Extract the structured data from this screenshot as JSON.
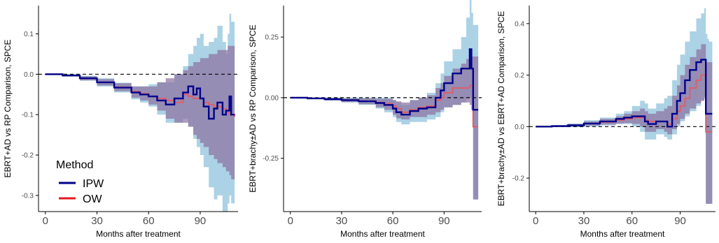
{
  "legend": {
    "title": "Method",
    "items": [
      {
        "label": "IPW",
        "color": "#00008b"
      },
      {
        "label": "OW",
        "color": "#e31a1c"
      }
    ]
  },
  "colors": {
    "ipw_band": "#9ecae1",
    "ow_band": "#8b6fa0",
    "ipw_line": "#00008b",
    "ow_line": "#d9606a",
    "reference": "#000000",
    "axis": "#000000"
  },
  "chart_data": [
    {
      "type": "line",
      "title": "",
      "xlabel": "Months after treatment",
      "ylabel": "EBRT+AD vs RP Comparison, SPCE",
      "xlim": [
        -4,
        112
      ],
      "ylim": [
        -0.34,
        0.17
      ],
      "xticks": [
        0,
        30,
        60,
        90
      ],
      "yticks": [
        -0.3,
        -0.2,
        -0.1,
        0.0,
        0.1
      ],
      "ytick_labels": [
        "-0.3",
        "-0.2",
        "-0.1",
        "0.0",
        "0.1"
      ],
      "reference_y": 0,
      "grid": false,
      "legend_position": "bottom-left",
      "x": [
        0,
        10,
        20,
        30,
        40,
        50,
        55,
        60,
        65,
        70,
        75,
        80,
        83,
        86,
        88,
        90,
        92,
        95,
        98,
        100,
        103,
        105,
        106,
        107,
        108,
        110
      ],
      "series": [
        {
          "name": "IPW",
          "values": [
            0,
            -0.003,
            -0.01,
            -0.02,
            -0.033,
            -0.045,
            -0.05,
            -0.055,
            -0.065,
            -0.075,
            -0.06,
            -0.045,
            -0.03,
            -0.05,
            -0.035,
            -0.06,
            -0.08,
            -0.11,
            -0.085,
            -0.07,
            -0.1,
            -0.09,
            -0.09,
            -0.055,
            -0.1,
            -0.1
          ]
        },
        {
          "name": "OW",
          "values": [
            0,
            -0.003,
            -0.01,
            -0.02,
            -0.032,
            -0.043,
            -0.048,
            -0.055,
            -0.06,
            -0.065,
            -0.07,
            -0.05,
            -0.055,
            -0.06,
            -0.06,
            -0.06,
            -0.07,
            -0.075,
            -0.08,
            -0.08,
            -0.085,
            -0.09,
            -0.095,
            -0.1,
            -0.1,
            -0.105
          ]
        }
      ],
      "bands": [
        {
          "name": "IPW",
          "lower": [
            0,
            -0.006,
            -0.016,
            -0.03,
            -0.045,
            -0.062,
            -0.07,
            -0.08,
            -0.1,
            -0.12,
            -0.12,
            -0.11,
            -0.13,
            -0.16,
            -0.18,
            -0.2,
            -0.23,
            -0.28,
            -0.31,
            -0.3,
            -0.34,
            -0.34,
            -0.32,
            -0.3,
            -0.32,
            -0.32
          ],
          "upper": [
            0,
            0.0,
            -0.004,
            -0.01,
            -0.021,
            -0.03,
            -0.03,
            -0.025,
            -0.02,
            -0.02,
            0.0,
            0.02,
            0.05,
            0.07,
            0.09,
            0.1,
            0.07,
            0.08,
            0.09,
            0.12,
            0.08,
            0.05,
            0.1,
            0.15,
            0.13,
            0.13
          ]
        },
        {
          "name": "OW",
          "lower": [
            0,
            -0.005,
            -0.015,
            -0.028,
            -0.042,
            -0.058,
            -0.065,
            -0.075,
            -0.09,
            -0.11,
            -0.12,
            -0.12,
            -0.13,
            -0.15,
            -0.16,
            -0.17,
            -0.18,
            -0.2,
            -0.21,
            -0.22,
            -0.23,
            -0.24,
            -0.24,
            -0.25,
            -0.26,
            -0.27
          ],
          "upper": [
            0,
            -0.001,
            -0.005,
            -0.012,
            -0.022,
            -0.03,
            -0.03,
            -0.03,
            -0.02,
            -0.01,
            0.0,
            0.01,
            0.02,
            0.03,
            0.03,
            0.04,
            0.04,
            0.05,
            0.05,
            0.06,
            0.06,
            0.06,
            0.07,
            0.07,
            0.07,
            0.07
          ]
        }
      ]
    },
    {
      "type": "line",
      "title": "",
      "xlabel": "Months after treatment",
      "ylabel": "EBRT+brachy±AD vs RP Comparison, SPCE",
      "xlim": [
        -4,
        112
      ],
      "ylim": [
        -0.47,
        0.38
      ],
      "xticks": [
        0,
        30,
        60,
        90
      ],
      "yticks": [
        -0.25,
        0.0,
        0.25
      ],
      "ytick_labels": [
        "-0.25",
        "0.00",
        "0.25"
      ],
      "reference_y": 0,
      "grid": false,
      "x": [
        0,
        10,
        20,
        30,
        40,
        50,
        55,
        60,
        62,
        65,
        70,
        75,
        80,
        85,
        88,
        90,
        95,
        100,
        103,
        105,
        106,
        107,
        108,
        110
      ],
      "series": [
        {
          "name": "IPW",
          "values": [
            0,
            -0.003,
            -0.006,
            -0.01,
            -0.015,
            -0.022,
            -0.03,
            -0.045,
            -0.06,
            -0.07,
            -0.055,
            -0.045,
            -0.04,
            0.0,
            0.03,
            0.06,
            0.1,
            0.12,
            0.12,
            0.2,
            0.12,
            -0.05,
            -0.05,
            -0.05
          ]
        },
        {
          "name": "OW",
          "values": [
            0,
            -0.003,
            -0.006,
            -0.01,
            -0.014,
            -0.02,
            -0.025,
            -0.035,
            -0.045,
            -0.06,
            -0.05,
            -0.04,
            -0.035,
            -0.01,
            0.0,
            0.02,
            0.04,
            0.04,
            0.04,
            0.05,
            0.05,
            -0.12,
            -0.12,
            -0.12
          ]
        }
      ],
      "bands": [
        {
          "name": "IPW",
          "lower": [
            0,
            -0.006,
            -0.012,
            -0.02,
            -0.03,
            -0.045,
            -0.06,
            -0.08,
            -0.1,
            -0.11,
            -0.1,
            -0.1,
            -0.09,
            -0.08,
            -0.06,
            -0.04,
            -0.03,
            -0.02,
            0.0,
            0.0,
            -0.05,
            -0.42,
            -0.42,
            -0.42
          ],
          "upper": [
            0,
            0.0,
            0.0,
            0.0,
            0.0,
            0.0,
            0.0,
            -0.01,
            -0.02,
            -0.03,
            -0.01,
            0.0,
            0.02,
            0.06,
            0.1,
            0.15,
            0.2,
            0.25,
            0.33,
            0.43,
            0.35,
            0.3,
            0.3,
            0.3
          ]
        },
        {
          "name": "OW",
          "lower": [
            0,
            -0.005,
            -0.011,
            -0.018,
            -0.027,
            -0.04,
            -0.05,
            -0.07,
            -0.085,
            -0.09,
            -0.08,
            -0.08,
            -0.07,
            -0.06,
            -0.05,
            -0.04,
            -0.03,
            -0.02,
            -0.02,
            -0.03,
            -0.05,
            -0.42,
            -0.42,
            -0.42
          ],
          "upper": [
            0,
            -0.001,
            -0.002,
            -0.003,
            -0.003,
            -0.005,
            -0.005,
            -0.01,
            -0.015,
            -0.02,
            -0.01,
            0.0,
            0.01,
            0.04,
            0.06,
            0.09,
            0.12,
            0.14,
            0.16,
            0.17,
            0.17,
            0.17,
            0.17,
            0.17
          ]
        }
      ]
    },
    {
      "type": "line",
      "title": "",
      "xlabel": "Months after treatment",
      "ylabel": "EBRT+brachy±AD vs EBRT+AD Comparison, SPCE",
      "xlim": [
        -4,
        112
      ],
      "ylim": [
        -0.33,
        0.47
      ],
      "xticks": [
        0,
        30,
        60,
        90
      ],
      "yticks": [
        -0.2,
        0.0,
        0.2,
        0.4
      ],
      "ytick_labels": [
        "-0.2",
        "0.0",
        "0.2",
        "0.4"
      ],
      "reference_y": 0,
      "grid": false,
      "x": [
        0,
        10,
        20,
        30,
        40,
        50,
        55,
        60,
        65,
        68,
        70,
        75,
        80,
        82,
        85,
        88,
        90,
        93,
        96,
        100,
        103,
        105,
        106,
        107,
        108,
        110
      ],
      "series": [
        {
          "name": "IPW",
          "values": [
            0,
            0.002,
            0.005,
            0.012,
            0.02,
            0.03,
            0.035,
            0.04,
            0.04,
            0.02,
            0.01,
            0.02,
            0.02,
            0.0,
            0.05,
            0.1,
            0.13,
            0.18,
            0.22,
            0.25,
            0.26,
            0.26,
            0.05,
            0.05,
            0.05,
            0.05
          ]
        },
        {
          "name": "OW",
          "values": [
            0,
            0.002,
            0.005,
            0.012,
            0.018,
            0.025,
            0.03,
            0.035,
            0.035,
            0.025,
            0.02,
            0.02,
            0.02,
            0.01,
            0.03,
            0.06,
            0.08,
            0.11,
            0.15,
            0.18,
            0.2,
            0.2,
            -0.02,
            -0.02,
            -0.02,
            -0.02
          ]
        }
      ],
      "bands": [
        {
          "name": "IPW",
          "lower": [
            0,
            -0.002,
            -0.002,
            0.0,
            0.005,
            0.01,
            0.01,
            0.0,
            -0.02,
            -0.05,
            -0.05,
            -0.03,
            -0.04,
            -0.05,
            -0.03,
            0.0,
            0.02,
            0.04,
            0.06,
            0.08,
            0.1,
            0.12,
            -0.3,
            -0.3,
            -0.3,
            -0.3
          ],
          "upper": [
            0,
            0.006,
            0.012,
            0.025,
            0.035,
            0.05,
            0.06,
            0.08,
            0.1,
            0.09,
            0.07,
            0.09,
            0.11,
            0.12,
            0.18,
            0.24,
            0.28,
            0.33,
            0.37,
            0.42,
            0.44,
            0.46,
            0.36,
            0.34,
            0.33,
            0.33
          ]
        },
        {
          "name": "OW",
          "lower": [
            0,
            -0.001,
            0.0,
            0.004,
            0.008,
            0.012,
            0.014,
            0.01,
            0.0,
            -0.02,
            -0.02,
            -0.01,
            -0.02,
            -0.03,
            -0.01,
            0.01,
            0.03,
            0.05,
            0.07,
            0.09,
            0.1,
            0.11,
            -0.3,
            -0.3,
            -0.3,
            -0.3
          ],
          "upper": [
            0,
            0.005,
            0.01,
            0.02,
            0.03,
            0.04,
            0.05,
            0.06,
            0.07,
            0.06,
            0.05,
            0.06,
            0.07,
            0.08,
            0.12,
            0.16,
            0.2,
            0.24,
            0.27,
            0.3,
            0.32,
            0.32,
            0.25,
            0.25,
            0.25,
            0.25
          ]
        }
      ]
    }
  ]
}
